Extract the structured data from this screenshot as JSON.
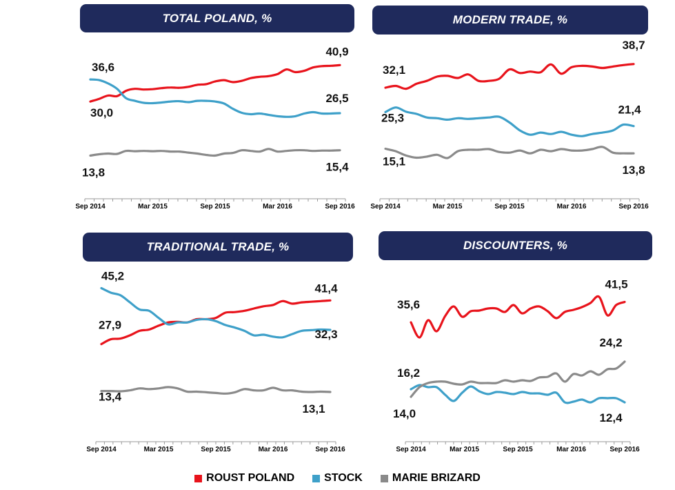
{
  "colors": {
    "header_bg": "#1f2a5c",
    "roust": "#e8131b",
    "stock": "#3ea0c9",
    "marie": "#8a8a8a"
  },
  "legend": [
    {
      "label": "ROUST POLAND",
      "color": "#e8131b"
    },
    {
      "label": "STOCK",
      "color": "#3ea0c9"
    },
    {
      "label": "MARIE BRIZARD",
      "color": "#8a8a8a"
    }
  ],
  "chart_data": [
    {
      "type": "line",
      "title": "TOTAL POLAND, %",
      "x_ticks": [
        "Sep 2014",
        "Mar 2015",
        "Sep 2015",
        "Mar 2016",
        "Sep 2016"
      ],
      "ylim": [
        5,
        48
      ],
      "grid": false,
      "series": [
        {
          "name": "ROUST POLAND",
          "values": [
            30.0,
            30.8,
            31.8,
            31.6,
            33.2,
            33.8,
            33.6,
            33.7,
            34.0,
            34.2,
            34.1,
            34.4,
            35.0,
            35.2,
            36.0,
            36.4,
            35.8,
            36.2,
            37.0,
            37.4,
            37.6,
            38.2,
            39.6,
            38.8,
            39.2,
            40.2,
            40.6,
            40.7,
            40.9
          ],
          "labels": [
            {
              "i": 0,
              "text": "30,0"
            },
            {
              "i": 28,
              "text": "40,9"
            }
          ]
        },
        {
          "name": "STOCK",
          "values": [
            36.6,
            36.4,
            35.4,
            33.8,
            31.0,
            30.2,
            29.6,
            29.5,
            29.7,
            30.0,
            30.1,
            29.8,
            30.2,
            30.2,
            30.0,
            29.4,
            27.8,
            26.6,
            26.2,
            26.4,
            26.0,
            25.6,
            25.4,
            25.6,
            26.4,
            26.8,
            26.4,
            26.4,
            26.5
          ],
          "labels": [
            {
              "i": 0,
              "text": "36,6"
            },
            {
              "i": 28,
              "text": "26,5"
            }
          ]
        },
        {
          "name": "MARIE BRIZARD",
          "values": [
            13.8,
            14.2,
            14.4,
            14.3,
            15.2,
            15.1,
            15.2,
            15.1,
            15.2,
            15.0,
            15.0,
            14.7,
            14.4,
            14.0,
            13.8,
            14.4,
            14.6,
            15.4,
            15.2,
            15.0,
            15.8,
            15.0,
            15.2,
            15.4,
            15.4,
            15.2,
            15.3,
            15.3,
            15.4
          ],
          "labels": [
            {
              "i": 0,
              "text": "13,8"
            },
            {
              "i": 28,
              "text": "15,4"
            }
          ]
        }
      ]
    },
    {
      "type": "line",
      "title": "MODERN TRADE, %",
      "x_ticks": [
        "Sep 2014",
        "Mar 2015",
        "Sep 2015",
        "Mar 2016",
        "Sep 2016"
      ],
      "ylim": [
        5,
        45
      ],
      "grid": false,
      "series": [
        {
          "name": "ROUST POLAND",
          "values": [
            32.1,
            32.6,
            31.8,
            33.2,
            34.0,
            35.2,
            35.4,
            34.8,
            35.8,
            34.0,
            34.0,
            34.6,
            37.2,
            36.2,
            36.6,
            36.4,
            38.6,
            36.0,
            37.8,
            38.2,
            38.0,
            37.6,
            38.0,
            38.4,
            38.7
          ],
          "labels": [
            {
              "i": 0,
              "text": "32,1"
            },
            {
              "i": 24,
              "text": "38,7"
            }
          ]
        },
        {
          "name": "STOCK",
          "values": [
            25.3,
            26.6,
            25.4,
            24.8,
            23.8,
            23.6,
            23.2,
            23.6,
            23.4,
            23.6,
            23.8,
            24.0,
            22.4,
            20.2,
            19.0,
            19.6,
            19.2,
            19.8,
            19.0,
            18.6,
            19.2,
            19.6,
            20.2,
            21.8,
            21.4
          ],
          "labels": [
            {
              "i": 0,
              "text": "25,3"
            },
            {
              "i": 24,
              "text": "21,4"
            }
          ]
        },
        {
          "name": "MARIE BRIZARD",
          "values": [
            15.1,
            14.4,
            13.2,
            12.6,
            12.9,
            13.4,
            12.5,
            14.4,
            14.8,
            14.8,
            15.0,
            14.2,
            14.0,
            14.6,
            13.8,
            14.8,
            14.4,
            15.0,
            14.6,
            14.6,
            15.0,
            15.6,
            14.0,
            13.8,
            13.8
          ],
          "labels": [
            {
              "i": 0,
              "text": "15,1"
            },
            {
              "i": 24,
              "text": "13,8"
            }
          ]
        }
      ]
    },
    {
      "type": "line",
      "title": "TRADITIONAL TRADE, %",
      "x_ticks": [
        "Sep 2014",
        "Mar 2015",
        "Sep 2015",
        "Mar 2016",
        "Sep 2016"
      ],
      "ylim": [
        2,
        50
      ],
      "grid": false,
      "series": [
        {
          "name": "ROUST POLAND",
          "values": [
            27.9,
            29.4,
            29.6,
            30.6,
            32.0,
            32.4,
            33.6,
            34.6,
            34.8,
            34.6,
            35.6,
            35.6,
            36.0,
            37.6,
            37.8,
            38.2,
            38.9,
            39.6,
            40.0,
            41.2,
            40.4,
            40.8,
            41.0,
            41.2,
            41.4
          ],
          "labels": [
            {
              "i": 0,
              "text": "27,9"
            },
            {
              "i": 24,
              "text": "41,4"
            }
          ]
        },
        {
          "name": "STOCK",
          "values": [
            45.2,
            43.8,
            43.0,
            40.8,
            38.6,
            38.2,
            36.0,
            34.0,
            34.6,
            34.6,
            35.4,
            35.6,
            35.0,
            33.8,
            33.0,
            32.0,
            30.6,
            30.8,
            30.2,
            30.0,
            31.0,
            32.0,
            32.2,
            32.4,
            32.3
          ],
          "labels": [
            {
              "i": 0,
              "text": "45,2"
            },
            {
              "i": 24,
              "text": "32,3"
            }
          ]
        },
        {
          "name": "MARIE BRIZARD",
          "values": [
            13.4,
            13.4,
            13.3,
            13.6,
            14.2,
            14.0,
            14.2,
            14.6,
            14.2,
            13.2,
            13.2,
            13.0,
            12.8,
            12.6,
            13.0,
            14.0,
            13.6,
            13.6,
            14.4,
            13.6,
            13.6,
            13.2,
            13.1,
            13.2,
            13.1
          ],
          "labels": [
            {
              "i": 0,
              "text": "13,4"
            },
            {
              "i": 24,
              "text": "13,1"
            }
          ]
        }
      ]
    },
    {
      "type": "line",
      "title": "DISCOUNTERS, %",
      "x_ticks": [
        "Sep 2014",
        "Mar 2015",
        "Sep 2015",
        "Mar 2016",
        "Sep 2016"
      ],
      "ylim": [
        5,
        50
      ],
      "grid": false,
      "series": [
        {
          "name": "ROUST POLAND",
          "values": [
            35.6,
            31.2,
            36.2,
            33.0,
            37.4,
            40.2,
            37.2,
            38.8,
            39.0,
            39.6,
            39.6,
            38.6,
            40.6,
            38.2,
            39.6,
            40.2,
            38.8,
            36.8,
            38.6,
            39.2,
            40.0,
            41.2,
            43.0,
            37.6,
            40.6,
            41.5
          ],
          "labels": [
            {
              "i": 0,
              "text": "35,6"
            },
            {
              "i": 25,
              "text": "41,5"
            }
          ]
        },
        {
          "name": "STOCK",
          "values": [
            16.2,
            17.4,
            16.8,
            16.8,
            14.6,
            12.8,
            15.2,
            17.0,
            15.6,
            14.8,
            15.4,
            15.2,
            14.8,
            15.4,
            15.0,
            15.0,
            14.6,
            15.2,
            12.4,
            12.6,
            13.2,
            12.4,
            13.6,
            13.6,
            13.6,
            12.4
          ],
          "labels": [
            {
              "i": 0,
              "text": "16,2"
            },
            {
              "i": 25,
              "text": "12,4"
            }
          ]
        },
        {
          "name": "MARIE BRIZARD",
          "values": [
            14.0,
            16.8,
            18.0,
            18.4,
            18.4,
            17.8,
            17.6,
            18.4,
            18.0,
            18.0,
            18.0,
            18.8,
            18.4,
            18.8,
            18.6,
            19.6,
            19.8,
            20.8,
            18.4,
            20.6,
            20.2,
            21.4,
            20.4,
            22.0,
            22.2,
            24.2
          ],
          "labels": [
            {
              "i": 0,
              "text": "14,0"
            },
            {
              "i": 25,
              "text": "24,2"
            }
          ]
        }
      ]
    }
  ]
}
